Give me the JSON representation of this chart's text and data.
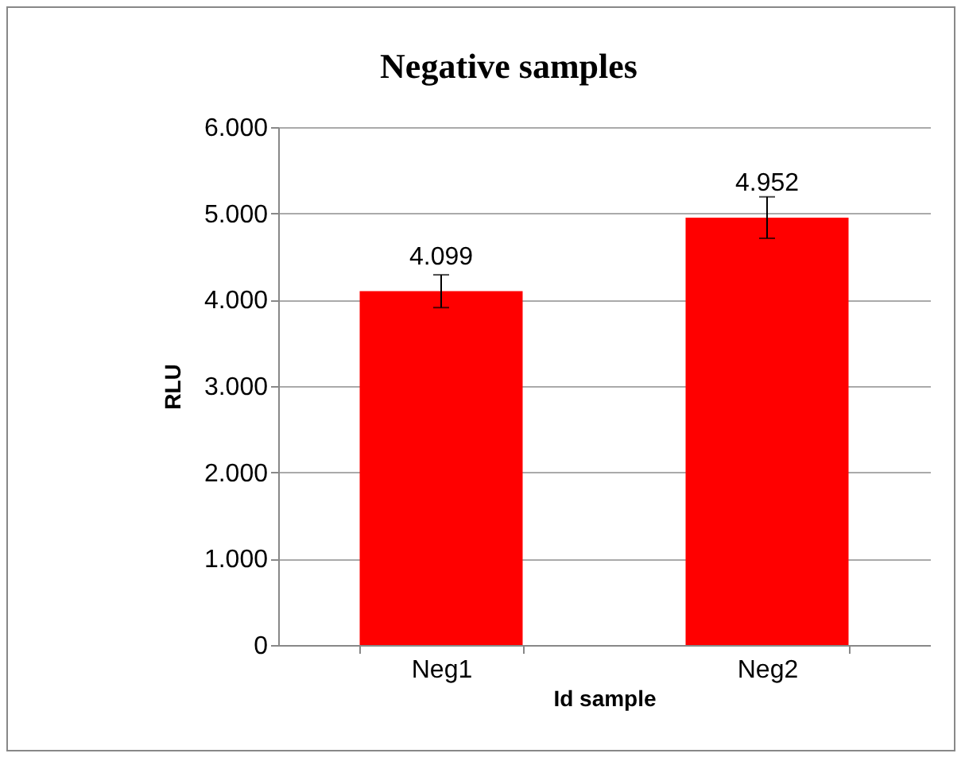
{
  "chart_data": {
    "type": "bar",
    "title": "Negative samples",
    "xlabel": "Id sample",
    "ylabel": "RLU",
    "categories": [
      "Neg1",
      "Neg2"
    ],
    "series": [
      {
        "color": "#ff0000",
        "values": [
          4099,
          4952
        ],
        "errors": [
          190,
          240
        ],
        "value_labels": [
          "4.099",
          "4.952"
        ]
      }
    ],
    "ylim": [
      0,
      6000
    ],
    "yticks": [
      0,
      {
        "value": 1000,
        "label": "1.000"
      },
      {
        "value": 2000,
        "label": "2.000"
      },
      {
        "value": 3000,
        "label": "3.000"
      },
      {
        "value": 4000,
        "label": "4.000"
      },
      {
        "value": 5000,
        "label": "5.000"
      },
      {
        "value": 6000,
        "label": "6.000"
      }
    ],
    "grid": "y"
  }
}
